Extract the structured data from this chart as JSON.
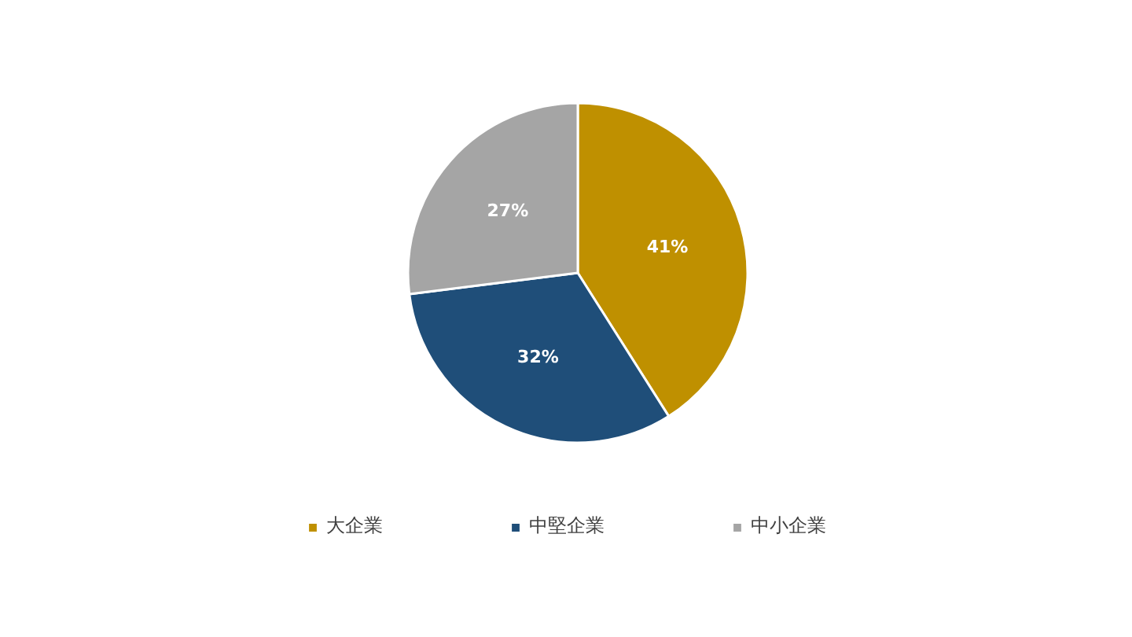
{
  "chart_data": {
    "type": "pie",
    "categories": [
      "大企業",
      "中堅企業",
      "中小企業"
    ],
    "values": [
      41,
      32,
      27
    ],
    "colors": [
      "#bf9000",
      "#1f4e79",
      "#a5a5a5"
    ],
    "value_labels": [
      "41%",
      "32%",
      "27%"
    ],
    "legend": "bottom"
  }
}
